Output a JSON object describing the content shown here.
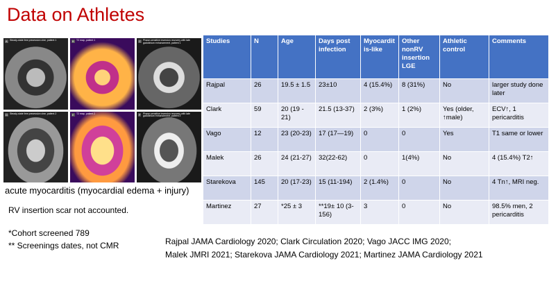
{
  "header": {
    "title": "Data on Athletes"
  },
  "figure": {
    "panels": [
      {
        "letter": "A",
        "caption": "Steady-state free precession cine, patient 1"
      },
      {
        "letter": "B",
        "caption": "T2 map, patient 1"
      },
      {
        "letter": "C",
        "caption": "Phase-sensitive inversion recovery with late gadolinium enhancement, patient 1"
      },
      {
        "letter": "D",
        "caption": "Steady-state free precession cine, patient 2"
      },
      {
        "letter": "E",
        "caption": "T2 map, patient 2"
      },
      {
        "letter": "F",
        "caption": "Phase-sensitive inversion recovery with late gadolinium enhancement, patient 2"
      }
    ],
    "caption": "acute myocarditis (myocardial edema + injury)"
  },
  "table": {
    "columns": [
      "Studies",
      "N",
      "Age",
      "Days post infection",
      "Myocarditis-like",
      "Other nonRV insertion LGE",
      "Athletic control",
      "Comments"
    ],
    "rows": [
      [
        "Rajpal",
        "26",
        "19.5 ± 1.5",
        "23±10",
        "4 (15.4%)",
        "8 (31%)",
        "No",
        "larger study done later"
      ],
      [
        "Clark",
        "59",
        "20 (19 - 21)",
        "21.5 (13-37)",
        "2 (3%)",
        "1 (2%)",
        "Yes (older, ↑male)",
        "ECV↑, 1 pericarditis"
      ],
      [
        "Vago",
        "12",
        "23 (20-23)",
        "17 (17—19)",
        "0",
        "0",
        "Yes",
        "T1 same or lower"
      ],
      [
        "Malek",
        "26",
        "24 (21-27)",
        "32(22-62)",
        "0",
        "1(4%)",
        "No",
        "4 (15.4%) T2↑"
      ],
      [
        "Starekova",
        "145",
        "20 (17-23)",
        "15 (11-194)",
        "2 (1.4%)",
        "0",
        "No",
        "4 Tn↑, MRI neg."
      ],
      [
        "Martinez",
        "27",
        "*25 ± 3",
        "**19± 10 (3-156)",
        "3",
        "0",
        "No",
        "98.5% men, 2 pericarditis"
      ]
    ]
  },
  "notes": [
    "RV insertion scar not accounted.",
    "*Cohort screened 789",
    "** Screenings dates, not CMR"
  ],
  "references": [
    "Rajpal JAMA Cardiology 2020; Clark Circulation 2020; Vago JACC IMG 2020;",
    "Malek JMRI 2021; Starekova JAMA Cardiology 2021; Martinez JAMA Cardiology 2021"
  ]
}
